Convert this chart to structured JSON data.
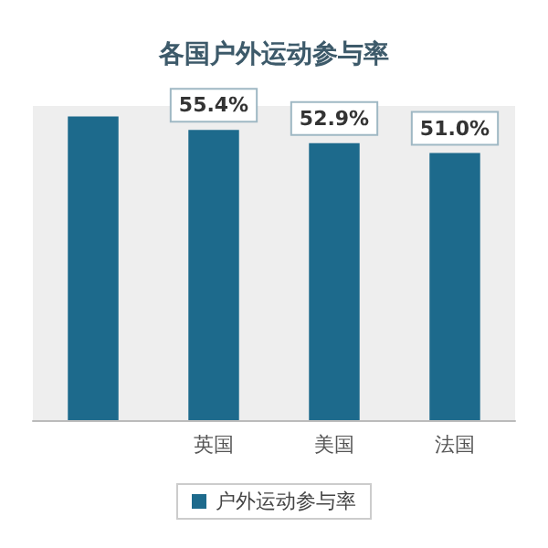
{
  "chart_data": {
    "type": "bar",
    "title": "各国户外运动参与率",
    "categories": [
      null,
      "英国",
      "美国",
      "法国"
    ],
    "series": [
      {
        "name": "户外运动参与率",
        "color": "#1d6a8c",
        "values": [
          58.0,
          55.4,
          52.9,
          51.0
        ],
        "value_labels": [
          null,
          "55.4%",
          "52.9%",
          "51.0%"
        ]
      }
    ],
    "legend": "bottom"
  }
}
